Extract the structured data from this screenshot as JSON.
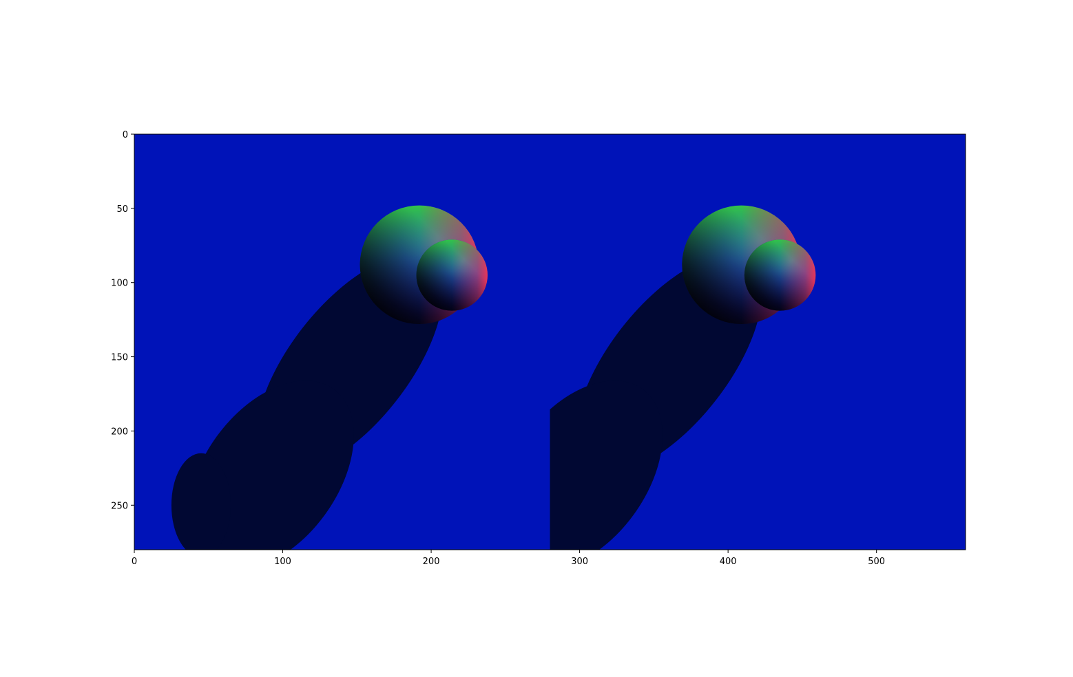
{
  "image_colors": {
    "background": "#0013b8",
    "shadow": "#010833"
  },
  "chart_data": {
    "type": "image",
    "title": "",
    "xlabel": "",
    "ylabel": "",
    "xlim": [
      0,
      560
    ],
    "ylim": [
      280,
      0
    ],
    "image_width": 560,
    "image_height": 280,
    "x_ticks": [
      0,
      100,
      200,
      300,
      400,
      500
    ],
    "y_ticks": [
      0,
      50,
      100,
      150,
      200,
      250
    ],
    "x_tick_labels": [
      "0",
      "100",
      "200",
      "300",
      "400",
      "500"
    ],
    "y_tick_labels": [
      "0",
      "50",
      "100",
      "150",
      "200",
      "250"
    ],
    "views": [
      {
        "name": "",
        "x_range": [
          0,
          280
        ],
        "spheres": [
          {
            "cx": 192,
            "cy": 88,
            "r": 40
          },
          {
            "cx": 214,
            "cy": 95,
            "r": 24
          }
        ],
        "shadow_ellipses": [
          {
            "cx": 145,
            "cy": 155,
            "rx": 40,
            "ry": 88,
            "rotate": 38
          },
          {
            "cx": 92,
            "cy": 230,
            "rx": 45,
            "ry": 72,
            "rotate": 36
          },
          {
            "cx": 45,
            "cy": 250,
            "rx": 20,
            "ry": 35,
            "rotate": 0
          }
        ]
      },
      {
        "name": "",
        "x_range": [
          280,
          560
        ],
        "spheres": [
          {
            "cx": 409,
            "cy": 88,
            "r": 40
          },
          {
            "cx": 435,
            "cy": 95,
            "r": 24
          }
        ],
        "shadow_ellipses": [
          {
            "cx": 360,
            "cy": 155,
            "rx": 40,
            "ry": 88,
            "rotate": 38
          },
          {
            "cx": 300,
            "cy": 230,
            "rx": 45,
            "ry": 72,
            "rotate": 36
          }
        ]
      }
    ]
  }
}
